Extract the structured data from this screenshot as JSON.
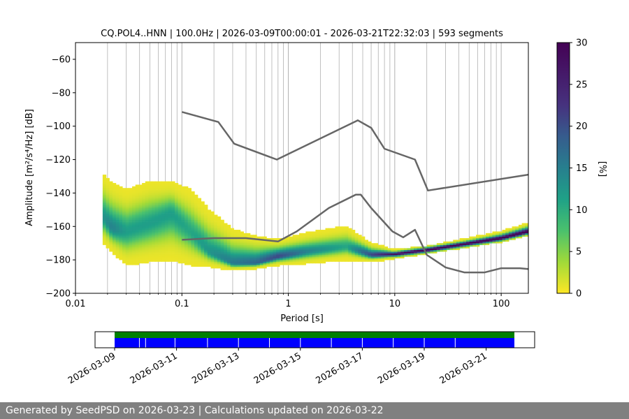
{
  "chart_data": {
    "type": "heatmap",
    "title": "CQ.POL4..HNN | 100.0Hz | 2026-03-09T00:00:01 - 2026-03-21T22:32:03 | 593 segments",
    "xlabel": "Period [s]",
    "ylabel": "Amplitude [m²/s⁴/Hz] [dB]",
    "x_scale": "log",
    "xlim": [
      0.01,
      180
    ],
    "ylim": [
      -200,
      -50
    ],
    "x_tick_values": [
      0.01,
      0.1,
      1,
      10,
      100
    ],
    "x_tick_labels": [
      "0.01",
      "0.1",
      "1",
      "10",
      "100"
    ],
    "y_tick_values": [
      -60,
      -80,
      -100,
      -120,
      -140,
      -160,
      -180,
      -200
    ],
    "y_tick_labels": [
      "−60",
      "−80",
      "−100",
      "−120",
      "−140",
      "−160",
      "−180",
      "−200"
    ],
    "grid": "vertical",
    "colorbar": {
      "label": "[%]",
      "range": [
        0,
        30
      ],
      "tick_values": [
        0,
        5,
        10,
        15,
        20,
        25,
        30
      ],
      "tick_labels": [
        "0",
        "5",
        "10",
        "15",
        "20",
        "25",
        "30"
      ],
      "colormap": "viridis_r"
    },
    "density_ridge": [
      {
        "period": 0.018,
        "mode": -154,
        "lo": -170,
        "hi": -128,
        "peak": 12
      },
      {
        "period": 0.022,
        "mode": -161,
        "lo": -175,
        "hi": -134,
        "peak": 14
      },
      {
        "period": 0.03,
        "mode": -163,
        "lo": -183,
        "hi": -138,
        "peak": 11
      },
      {
        "period": 0.05,
        "mode": -158,
        "lo": -181,
        "hi": -133,
        "peak": 11
      },
      {
        "period": 0.08,
        "mode": -152,
        "lo": -180,
        "hi": -133,
        "peak": 11
      },
      {
        "period": 0.12,
        "mode": -163,
        "lo": -183,
        "hi": -138,
        "peak": 10
      },
      {
        "period": 0.18,
        "mode": -175,
        "lo": -184,
        "hi": -150,
        "peak": 12
      },
      {
        "period": 0.3,
        "mode": -182,
        "lo": -186,
        "hi": -162,
        "peak": 15
      },
      {
        "period": 0.5,
        "mode": -182,
        "lo": -185,
        "hi": -166,
        "peak": 17
      },
      {
        "period": 0.8,
        "mode": -178,
        "lo": -183,
        "hi": -168,
        "peak": 20
      },
      {
        "period": 1.5,
        "mode": -175,
        "lo": -182,
        "hi": -164,
        "peak": 14
      },
      {
        "period": 3.5,
        "mode": -172,
        "lo": -180,
        "hi": -160,
        "peak": 10
      },
      {
        "period": 6,
        "mode": -177,
        "lo": -181,
        "hi": -170,
        "peak": 20
      },
      {
        "period": 10,
        "mode": -176.5,
        "lo": -179,
        "hi": -174,
        "peak": 28
      },
      {
        "period": 20,
        "mode": -174,
        "lo": -176,
        "hi": -172,
        "peak": 30
      },
      {
        "period": 50,
        "mode": -170,
        "lo": -172,
        "hi": -167,
        "peak": 30
      },
      {
        "period": 100,
        "mode": -167,
        "lo": -169,
        "hi": -163,
        "peak": 30
      },
      {
        "period": 180,
        "mode": -163,
        "lo": -165,
        "hi": -158,
        "peak": 30
      }
    ],
    "series": [
      {
        "x": [
          0.1,
          0.22,
          0.31,
          0.78,
          4.5,
          6,
          8,
          15.5,
          20.5,
          180
        ],
        "y": [
          -91.5,
          -97.5,
          -110.5,
          -120,
          -96.5,
          -101,
          -113.5,
          -120,
          -138.5,
          -129
        ]
      },
      {
        "x": [
          0.1,
          0.2,
          0.4,
          0.8,
          1.2,
          2.4,
          4.3,
          4.8,
          6,
          9.5,
          12,
          15.5,
          20,
          30,
          45,
          70,
          100,
          150,
          180
        ],
        "y": [
          -168,
          -167,
          -167,
          -169,
          -163,
          -149,
          -141,
          -141,
          -149,
          -163,
          -166.5,
          -162,
          -177,
          -184.5,
          -187.5,
          -187.5,
          -185,
          -185,
          -185.5
        ]
      }
    ]
  },
  "timeline": {
    "x_tick_labels": [
      "2026-03-09",
      "2026-03-11",
      "2026-03-13",
      "2026-03-15",
      "2026-03-17",
      "2026-03-19",
      "2026-03-21"
    ],
    "start_day": "2026-03-09T00:00:01",
    "end_day": "2026-03-21T22:32:03",
    "colors": {
      "top_band": "#008000",
      "bottom_band": "#0000ff"
    }
  },
  "footer": {
    "text": "Generated by SeedPSD on 2026-03-23 | Calculations updated on 2026-03-22"
  }
}
